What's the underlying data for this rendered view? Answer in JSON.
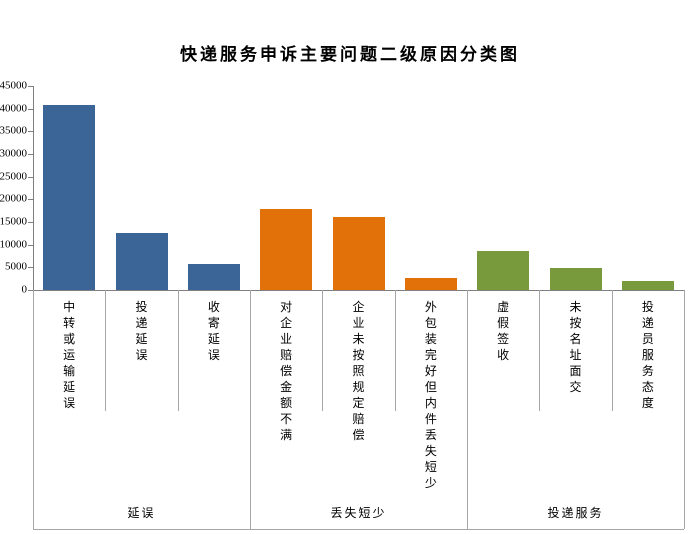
{
  "chart_data": {
    "type": "bar",
    "title": "快递服务申诉主要问题二级原因分类图",
    "categories": [
      "中转或运输延误",
      "投递延误",
      "收寄延误",
      "对企业赔偿金额不满",
      "企业未按照规定赔偿",
      "外包装完好但内件丢失短少",
      "虚假签收",
      "未按名址面交",
      "投递员服务态度"
    ],
    "values": [
      40700,
      12500,
      5700,
      17800,
      16000,
      2700,
      8700,
      4800,
      1900
    ],
    "groups": [
      {
        "label": "延误",
        "span": 3,
        "color": "#3A6596"
      },
      {
        "label": "丢失短少",
        "span": 3,
        "color": "#E2710A"
      },
      {
        "label": "投递服务",
        "span": 3,
        "color": "#789A3C"
      }
    ],
    "xlabel": "",
    "ylabel": "",
    "ylim": [
      0,
      45000
    ],
    "ytick_step": 5000,
    "yticks": [
      "0",
      "5000",
      "10000",
      "15000",
      "20000",
      "25000",
      "30000",
      "35000",
      "40000",
      "45000"
    ],
    "grid": "off",
    "legend": "none",
    "axis_color": "#7F7F7F",
    "divider_color": "#A6A6A6",
    "background_color": "#FFFFFF"
  }
}
